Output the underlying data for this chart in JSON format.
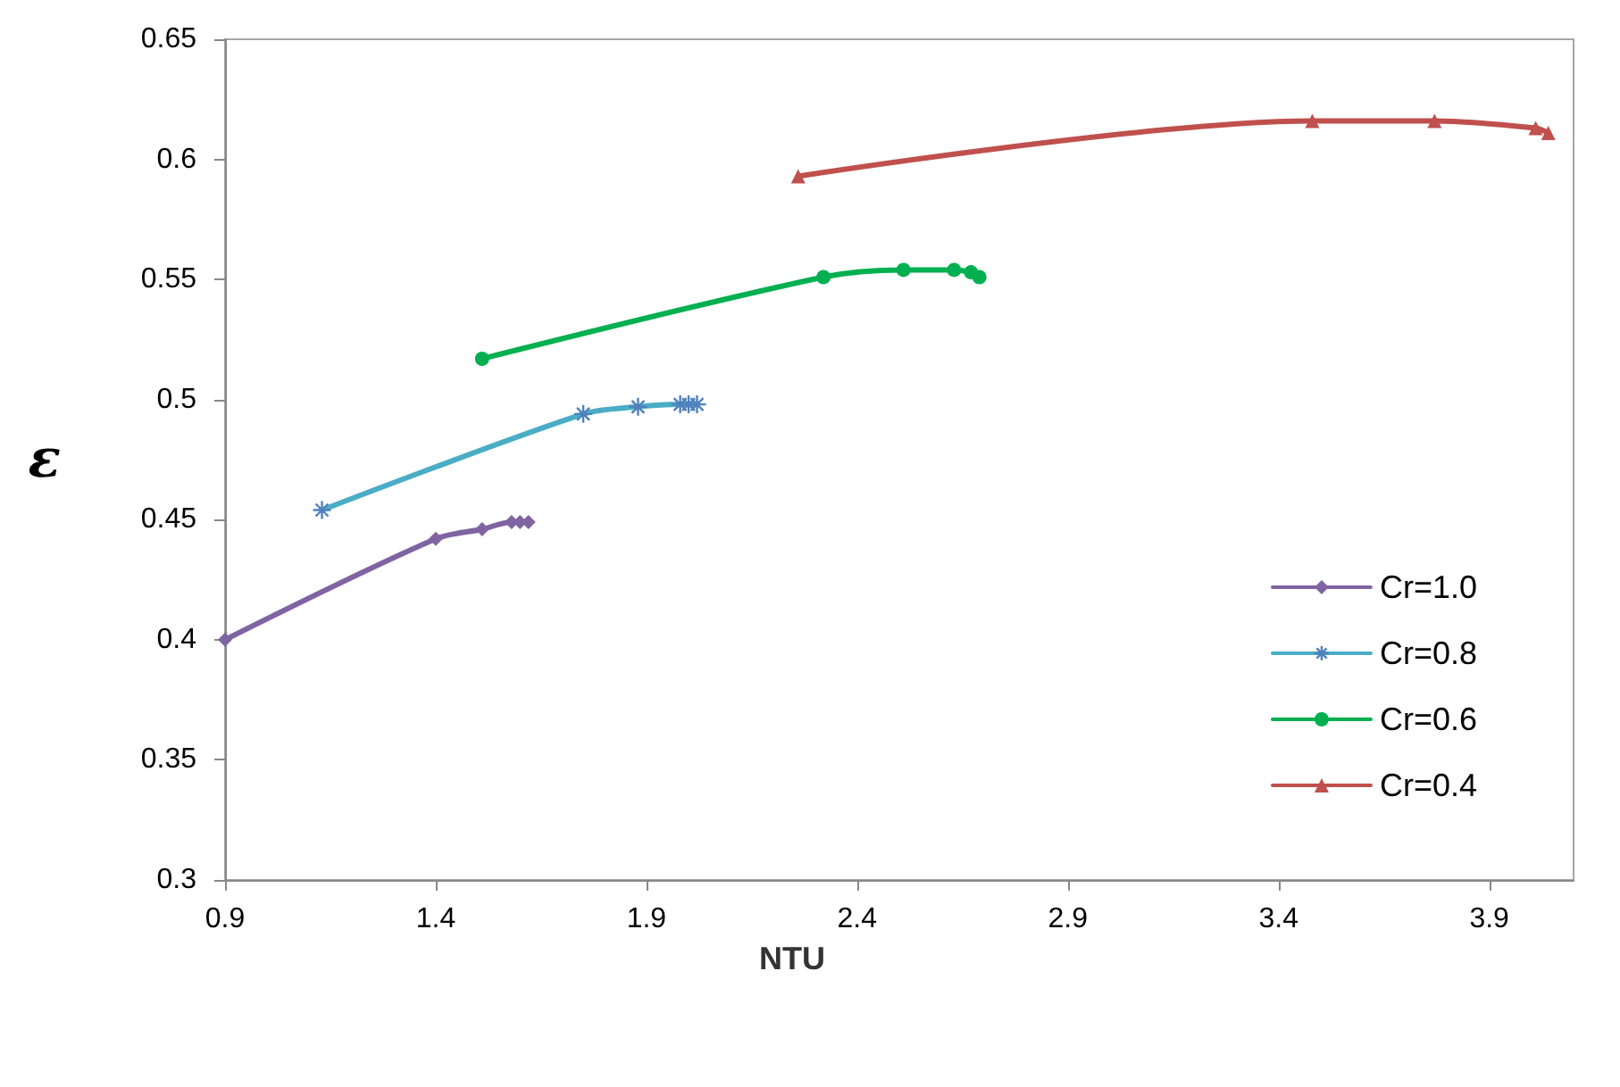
{
  "chart_data": {
    "type": "line",
    "xlabel": "NTU",
    "ylabel": "ε",
    "xlim": [
      0.9,
      4.1
    ],
    "xticks": [
      0.9,
      1.4,
      1.9,
      2.4,
      2.9,
      3.4,
      3.9
    ],
    "ylim": [
      0.3,
      0.65
    ],
    "yticks": [
      0.3,
      0.35,
      0.4,
      0.45,
      0.5,
      0.55,
      0.6,
      0.65
    ],
    "grid": false,
    "legend": "right",
    "series": [
      {
        "name": "Cr=1.0",
        "color": "#8064a2",
        "marker": "diamond",
        "x": [
          0.9,
          1.4,
          1.51,
          1.58,
          1.6,
          1.62
        ],
        "values": [
          0.4,
          0.442,
          0.446,
          0.449,
          0.449,
          0.449
        ]
      },
      {
        "name": "Cr=0.8",
        "color": "#4bacc6",
        "marker": "cross",
        "x": [
          1.13,
          1.75,
          1.88,
          1.98,
          2.0,
          2.02
        ],
        "values": [
          0.454,
          0.494,
          0.497,
          0.498,
          0.498,
          0.498
        ]
      },
      {
        "name": "Cr=0.6",
        "color": "#00b050",
        "marker": "circle",
        "x": [
          1.51,
          2.32,
          2.51,
          2.63,
          2.67,
          2.69
        ],
        "values": [
          0.517,
          0.551,
          0.554,
          0.554,
          0.553,
          0.551
        ]
      },
      {
        "name": "Cr=0.4",
        "color": "#c0504d",
        "marker": "triangle",
        "x": [
          2.26,
          3.48,
          3.77,
          4.01,
          4.04
        ],
        "values": [
          0.593,
          0.616,
          0.616,
          0.613,
          0.611
        ]
      }
    ]
  }
}
